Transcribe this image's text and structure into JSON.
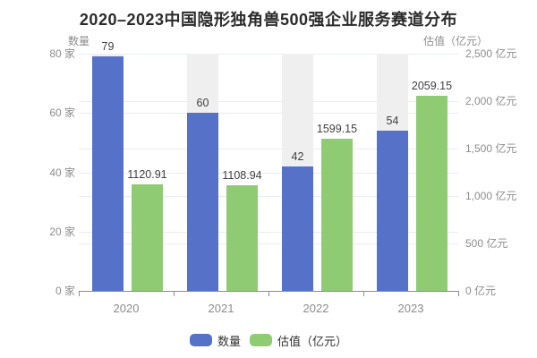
{
  "title": "2020–2023中国隐形独角兽500强企业服务赛道分布",
  "chart_data": {
    "type": "bar",
    "categories": [
      "2020",
      "2021",
      "2022",
      "2023"
    ],
    "series": [
      {
        "name": "数量",
        "key": "quantity",
        "axis": "left",
        "color": "#5571c8",
        "values": [
          79,
          60,
          42,
          54
        ],
        "value_labels": [
          "79",
          "60",
          "42",
          "54"
        ]
      },
      {
        "name": "估值（亿元）",
        "key": "valuation",
        "axis": "right",
        "color": "#8fcb73",
        "values": [
          1120.91,
          1108.94,
          1599.15,
          2059.15
        ],
        "value_labels": [
          "1120.91",
          "1108.94",
          "1599.15",
          "2059.15"
        ]
      }
    ],
    "left_axis": {
      "title": "数量",
      "min": 0,
      "max": 80,
      "ticks": [
        0,
        20,
        40,
        60,
        80
      ],
      "tick_labels": [
        "0 家",
        "20 家",
        "40 家",
        "60 家",
        "80 家"
      ],
      "unit": "家"
    },
    "right_axis": {
      "title": "估值（亿元）",
      "min": 0,
      "max": 2500,
      "ticks": [
        0,
        500,
        1000,
        1500,
        2000,
        2500
      ],
      "tick_labels": [
        "0 亿元",
        "500 亿元",
        "1,000 亿元",
        "1,500 亿元",
        "2,000 亿元",
        "2,500 亿元"
      ],
      "unit": "亿元"
    },
    "legend": [
      "数量",
      "估值（亿元）"
    ],
    "legend_position": "bottom-center",
    "grid": true,
    "bar_background": true
  },
  "colors": {
    "series_blue": "#5571c8",
    "series_green": "#8fcb73",
    "bar_background": "#efefef",
    "grid_line": "#e8edf6",
    "axis_line": "#8c8c8c",
    "axis_text": "#8c8c8c",
    "value_text": "#3f3f3f",
    "title_text": "#2b2b2b",
    "background": "#ffffff"
  }
}
